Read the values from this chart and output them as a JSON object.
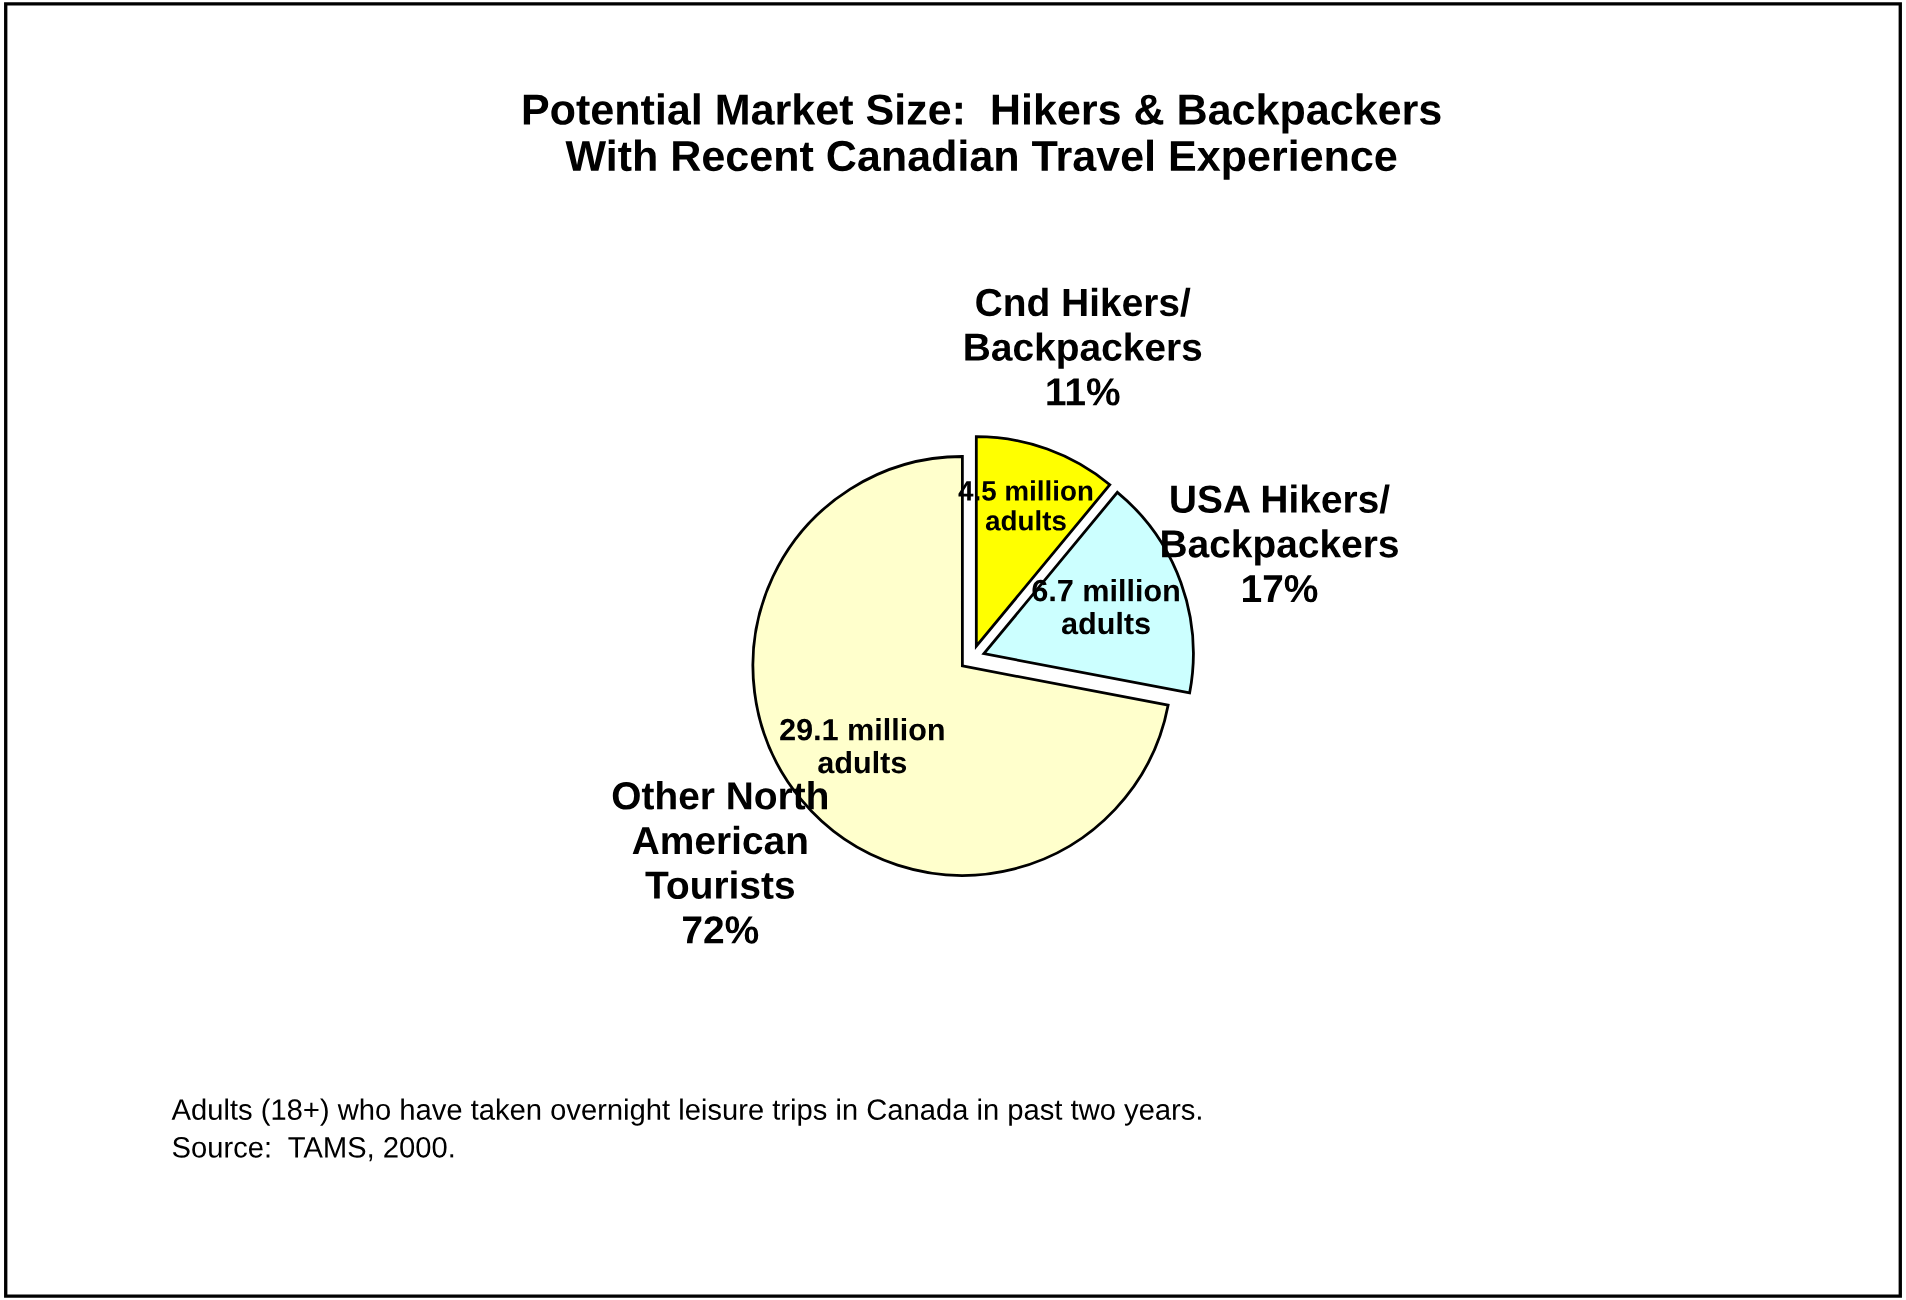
{
  "chart_data": {
    "type": "pie",
    "title": "Potential Market Size:  Hikers & Backpackers\nWith Recent Canadian Travel Experience",
    "categories": [
      "Cnd Hikers/\nBackpackers",
      "USA Hikers/\nBackpackers",
      "Other North\nAmerican\nTourists"
    ],
    "values": [
      11,
      17,
      72
    ],
    "colors": [
      "#ffff00",
      "#ccffff",
      "#ffffcc"
    ],
    "value_labels": [
      "11%",
      "17%",
      "72%"
    ],
    "annotations": [
      {
        "text": "4.5 million\nadults",
        "x": "Cnd Hikers/\nBackpackers"
      },
      {
        "text": "6.7 million\nadults",
        "x": "USA Hikers/\nBackpackers"
      },
      {
        "text": "29.1 million\nadults",
        "x": "Other North\nAmerican\nTourists"
      },
      "Adults (18+) who have taken overnight leisure trips in Canada in past two years.\nSource:  TAMS, 2000."
    ]
  }
}
